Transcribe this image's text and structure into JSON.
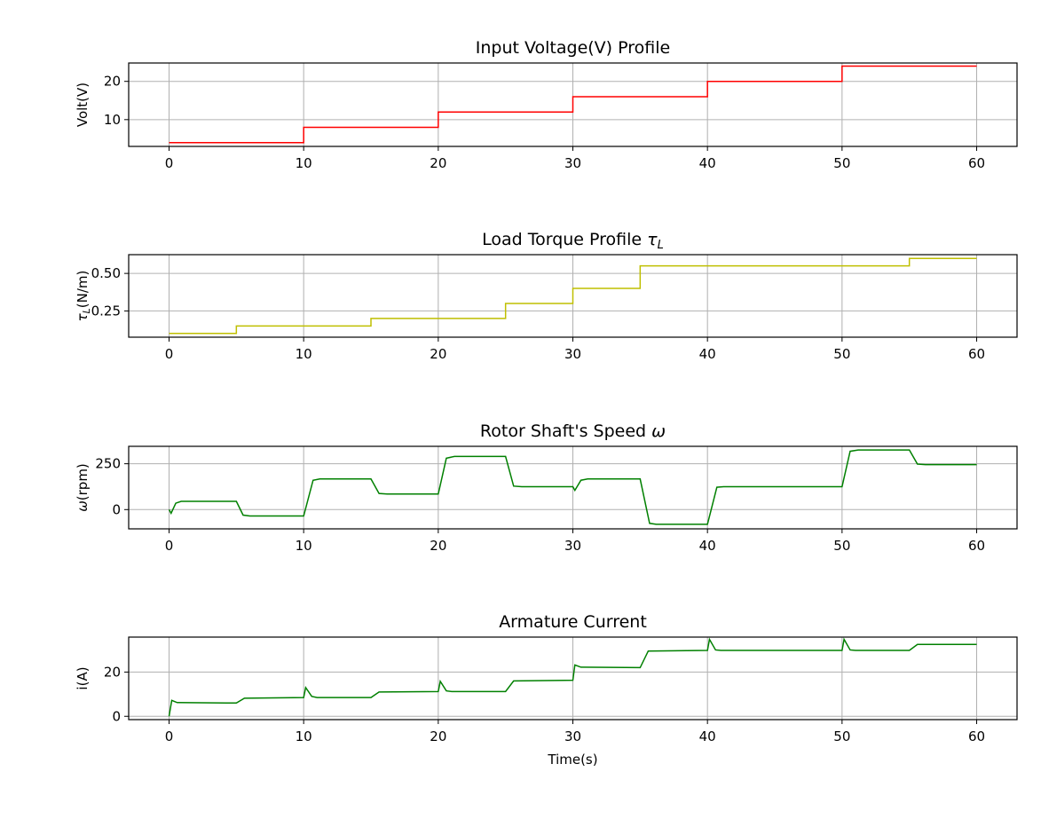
{
  "chart_data": [
    {
      "type": "line",
      "title": "Input Voltage(V) Profile",
      "xlabel": "",
      "ylabel": "Volt(V)",
      "xlim": [
        -3,
        63
      ],
      "ylim": [
        3,
        24.8
      ],
      "xticks": [
        0,
        10,
        20,
        30,
        40,
        50,
        60
      ],
      "yticks": [
        10,
        20
      ],
      "grid": true,
      "series": [
        {
          "color": "#ff0000",
          "points": [
            [
              0,
              4
            ],
            [
              10,
              4
            ],
            [
              10,
              8
            ],
            [
              20,
              8
            ],
            [
              20,
              12
            ],
            [
              30,
              12
            ],
            [
              30,
              16
            ],
            [
              40,
              16
            ],
            [
              40,
              20
            ],
            [
              50,
              20
            ],
            [
              50,
              24
            ],
            [
              60,
              24
            ]
          ]
        }
      ]
    },
    {
      "type": "line",
      "title": "Load Torque Profile τL",
      "xlabel": "",
      "ylabel": "τL(N/m)",
      "xlim": [
        -3,
        63
      ],
      "ylim": [
        0.075,
        0.625
      ],
      "xticks": [
        0,
        10,
        20,
        30,
        40,
        50,
        60
      ],
      "yticks": [
        0.25,
        0.5
      ],
      "ytick_labels": [
        "0.25",
        "0.50"
      ],
      "grid": true,
      "series": [
        {
          "color": "#bfbf00",
          "points": [
            [
              0,
              0.1
            ],
            [
              5,
              0.1
            ],
            [
              5,
              0.15
            ],
            [
              15,
              0.15
            ],
            [
              15,
              0.2
            ],
            [
              25,
              0.2
            ],
            [
              25,
              0.3
            ],
            [
              30,
              0.3
            ],
            [
              30,
              0.4
            ],
            [
              35,
              0.4
            ],
            [
              35,
              0.55
            ],
            [
              55,
              0.55
            ],
            [
              55,
              0.6
            ],
            [
              60,
              0.6
            ]
          ]
        }
      ]
    },
    {
      "type": "line",
      "title": "Rotor Shaft's Speed ω",
      "xlabel": "",
      "ylabel": "ω(rpm)",
      "xlim": [
        -3,
        63
      ],
      "ylim": [
        -105,
        345
      ],
      "xticks": [
        0,
        10,
        20,
        30,
        40,
        50,
        60
      ],
      "yticks": [
        0,
        250
      ],
      "grid": true,
      "series": [
        {
          "color": "#008000",
          "points": [
            [
              0,
              0
            ],
            [
              0.15,
              -20
            ],
            [
              0.5,
              35
            ],
            [
              0.9,
              45
            ],
            [
              5,
              45
            ],
            [
              5.5,
              -30
            ],
            [
              6,
              -35
            ],
            [
              10,
              -35
            ],
            [
              10.7,
              160
            ],
            [
              11.2,
              167
            ],
            [
              15,
              167
            ],
            [
              15.6,
              88
            ],
            [
              16.2,
              85
            ],
            [
              20,
              85
            ],
            [
              20.6,
              280
            ],
            [
              21.2,
              290
            ],
            [
              25,
              290
            ],
            [
              25.6,
              128
            ],
            [
              26.2,
              125
            ],
            [
              30,
              125
            ],
            [
              30.15,
              105
            ],
            [
              30.6,
              160
            ],
            [
              31.1,
              167
            ],
            [
              35,
              167
            ],
            [
              35.7,
              -75
            ],
            [
              36.2,
              -80
            ],
            [
              40,
              -80
            ],
            [
              40.7,
              122
            ],
            [
              41.2,
              125
            ],
            [
              50,
              125
            ],
            [
              50.6,
              318
            ],
            [
              51.2,
              325
            ],
            [
              55,
              325
            ],
            [
              55.6,
              248
            ],
            [
              56.2,
              245
            ],
            [
              60,
              245
            ]
          ]
        }
      ]
    },
    {
      "type": "line",
      "title": "Armature Current",
      "xlabel": "Time(s)",
      "ylabel": "i(A)",
      "xlim": [
        -3,
        63
      ],
      "ylim": [
        -1.5,
        35.8
      ],
      "xticks": [
        0,
        10,
        20,
        30,
        40,
        50,
        60
      ],
      "yticks": [
        0,
        20
      ],
      "grid": true,
      "series": [
        {
          "color": "#008000",
          "points": [
            [
              0,
              0
            ],
            [
              0.2,
              7.2
            ],
            [
              0.6,
              6.2
            ],
            [
              5,
              6
            ],
            [
              5.6,
              8.2
            ],
            [
              10,
              8.5
            ],
            [
              10.15,
              13
            ],
            [
              10.6,
              9
            ],
            [
              11,
              8.5
            ],
            [
              15,
              8.5
            ],
            [
              15.6,
              11
            ],
            [
              20,
              11.2
            ],
            [
              20.15,
              15.8
            ],
            [
              20.6,
              11.5
            ],
            [
              21,
              11.2
            ],
            [
              25,
              11.2
            ],
            [
              25.6,
              16
            ],
            [
              30,
              16.3
            ],
            [
              30.15,
              23.2
            ],
            [
              30.6,
              22.2
            ],
            [
              35,
              22
            ],
            [
              35.6,
              29.5
            ],
            [
              40,
              29.8
            ],
            [
              40.15,
              34.8
            ],
            [
              40.6,
              30
            ],
            [
              41,
              29.8
            ],
            [
              50,
              29.8
            ],
            [
              50.15,
              34.8
            ],
            [
              50.6,
              30
            ],
            [
              51,
              29.8
            ],
            [
              55,
              29.8
            ],
            [
              55.6,
              32.5
            ],
            [
              60,
              32.5
            ]
          ]
        }
      ]
    }
  ]
}
